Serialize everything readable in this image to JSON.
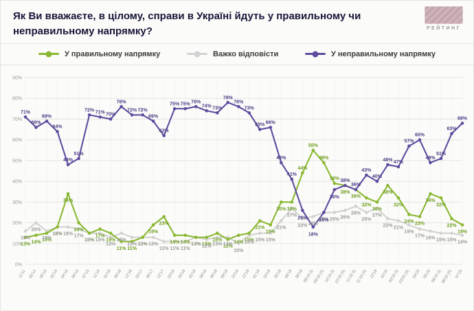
{
  "header": {
    "title": "Як Ви вважаєте, в цілому, справи в Україні йдуть у правильному чи неправильному напрямку?",
    "logo_text": "РЕЙТИНГ"
  },
  "legend": {
    "items": [
      {
        "label": "У правильному напрямку"
      },
      {
        "label": "Важко відповісти"
      },
      {
        "label": "У неправильному напрямку"
      }
    ]
  },
  "chart_data": {
    "type": "line",
    "title": "Як Ви вважаєте, в цілому, справи в Україні йдуть у правильному чи неправильному напрямку?",
    "xlabel": "",
    "ylabel": "",
    "ylim": [
      0,
      90
    ],
    "y_tick_step": 10,
    "y_tick_format": "percent",
    "grid": true,
    "legend_position": "top",
    "categories": [
      "11'11",
      "05'12",
      "05'13",
      "02'14",
      "04'14",
      "09'14",
      "07'15",
      "11'15",
      "02'16",
      "09'16",
      "12'16",
      "03'17",
      "08'17",
      "12'17",
      "03'18",
      "04'18",
      "05'18",
      "06'18",
      "08'18",
      "09'18",
      "10'18",
      "12'18",
      "01'19",
      "03'19",
      "05'19",
      "06'19",
      "08'19",
      "09'19 (І)",
      "09'19 (ІІ)",
      "10'19 (І)",
      "10'19 (ІІ)",
      "11'19 (І)",
      "11'19 (ІІ)",
      "12'19",
      "02'20",
      "03'20 (І)",
      "03'20 (ІІ)",
      "04'20",
      "05'20",
      "06'20 (І)",
      "06'20 (ІІ)",
      "07'20"
    ],
    "series": [
      {
        "name": "У правильному напрямку",
        "color": "#8ab832",
        "label_color": "#6e9e1f",
        "values": [
          13,
          14,
          15,
          18,
          34,
          20,
          15,
          17,
          15,
          11,
          11,
          13,
          19,
          23,
          14,
          14,
          13,
          13,
          15,
          12,
          14,
          15,
          21,
          19,
          30,
          30,
          44,
          55,
          49,
          39,
          38,
          36,
          32,
          30,
          38,
          32,
          24,
          23,
          34,
          32,
          22,
          19
        ]
      },
      {
        "name": "Важко відповісти",
        "color": "#d2d2d2",
        "label_color": "#9a9a9a",
        "values": [
          16,
          20,
          16,
          18,
          18,
          17,
          15,
          15,
          13,
          15,
          13,
          13,
          13,
          11,
          11,
          11,
          13,
          12,
          13,
          13,
          10,
          14,
          15,
          15,
          21,
          27,
          22,
          23,
          25,
          25,
          26,
          28,
          25,
          27,
          22,
          21,
          19,
          17,
          16,
          15,
          15,
          14
        ]
      },
      {
        "name": "У неправильному напрямку",
        "color": "#5f4b9e",
        "label_color": "#4c3c85",
        "values": [
          71,
          66,
          69,
          64,
          48,
          51,
          72,
          71,
          70,
          76,
          72,
          72,
          69,
          62,
          75,
          75,
          76,
          74,
          73,
          78,
          76,
          73,
          65,
          66,
          49,
          41,
          26,
          18,
          25,
          36,
          38,
          36,
          43,
          40,
          48,
          47,
          57,
          60,
          49,
          51,
          63,
          68
        ]
      }
    ]
  }
}
